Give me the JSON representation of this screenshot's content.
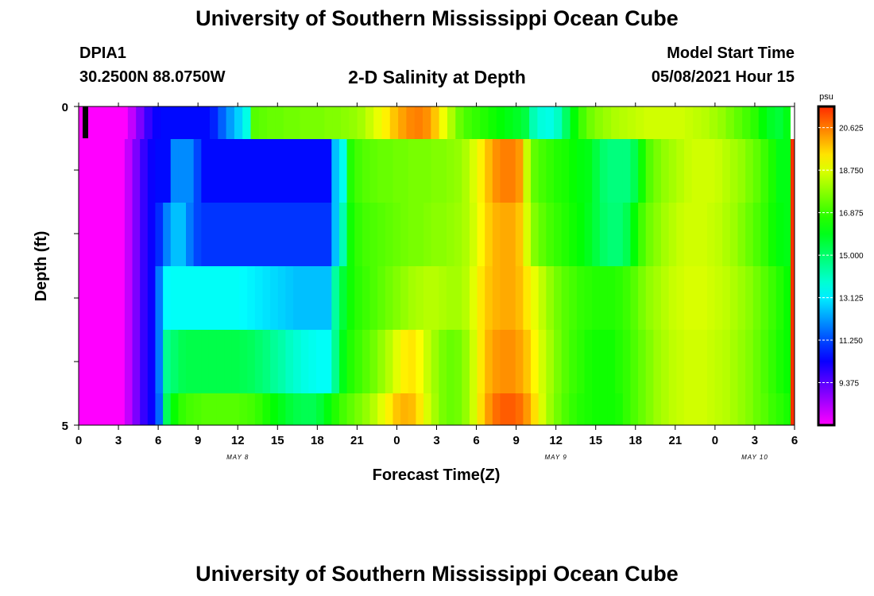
{
  "header": {
    "title": "University of Southern Mississippi Ocean Cube",
    "station": "DPIA1",
    "coords": "30.2500N  88.0750W",
    "subtitle": "2-D Salinity at Depth",
    "model_start_label": "Model Start Time",
    "model_start_value": "05/08/2021 Hour 15"
  },
  "footer": {
    "title": "University of Southern Mississippi Ocean Cube"
  },
  "chart_data": {
    "type": "heatmap",
    "title": "2-D Salinity at Depth",
    "xlabel": "Forecast Time(Z)",
    "ylabel": "Depth (ft)",
    "x_tick_labels": [
      "0",
      "3",
      "6",
      "9",
      "12",
      "15",
      "18",
      "21",
      "0",
      "3",
      "6",
      "9",
      "12",
      "15",
      "18",
      "21",
      "0",
      "3",
      "6"
    ],
    "date_labels": [
      {
        "label": "MAY 8",
        "tick_index": 4
      },
      {
        "label": "MAY 9",
        "tick_index": 12
      },
      {
        "label": "MAY 10",
        "tick_index": 17
      }
    ],
    "y_tick_labels": [
      "0",
      "5"
    ],
    "y_range": [
      0,
      5
    ],
    "hours_range": [
      0,
      54
    ],
    "colorbar": {
      "unit": "psu",
      "min": 7.5,
      "max": 21.56,
      "ticks": [
        "20.625",
        "18.750",
        "16.875",
        "15.000",
        "13.125",
        "11.250",
        "9.375"
      ]
    },
    "depth_layers": [
      {
        "name": "0.0-0.5 ft",
        "salinity": [
          7.5,
          7.5,
          7.5,
          7.5,
          7.5,
          7.5,
          8.2,
          9.0,
          9.8,
          10.3,
          10.5,
          10.5,
          10.5,
          10.5,
          10.5,
          10.5,
          10.8,
          11.5,
          12.2,
          12.8,
          13.6,
          17.2,
          17.3,
          17.4,
          17.4,
          17.5,
          17.5,
          17.6,
          17.6,
          17.6,
          17.7,
          17.7,
          17.8,
          17.9,
          18.1,
          18.5,
          18.9,
          19.3,
          19.8,
          20.2,
          20.5,
          20.6,
          20.4,
          19.8,
          19.0,
          18.2,
          17.4,
          17.0,
          16.8,
          16.6,
          16.4,
          16.2,
          16.0,
          15.8,
          15.5,
          14.2,
          13.7,
          13.6,
          14.0,
          15.1,
          16.2,
          17.0,
          17.5,
          17.8,
          18.0,
          18.2,
          18.3,
          18.4,
          18.5,
          18.6,
          18.6,
          18.6,
          18.6,
          18.6,
          18.5,
          18.4,
          18.3,
          18.1,
          17.9,
          17.6,
          17.3,
          17.0,
          16.7,
          16.2,
          15.8,
          15.6,
          16.0
        ]
      },
      {
        "name": "0.5-1.5 ft",
        "salinity": [
          7.5,
          7.5,
          7.5,
          7.5,
          7.5,
          7.5,
          8.2,
          9.0,
          9.8,
          10.3,
          10.5,
          10.5,
          12.0,
          12.0,
          12.0,
          11.2,
          10.5,
          10.5,
          10.5,
          10.5,
          10.5,
          10.5,
          10.5,
          10.5,
          10.5,
          10.5,
          10.5,
          10.5,
          10.5,
          10.5,
          10.5,
          10.5,
          10.5,
          12.6,
          13.5,
          16.6,
          17.0,
          17.2,
          17.3,
          17.4,
          17.4,
          17.5,
          17.5,
          17.6,
          17.6,
          17.6,
          17.7,
          17.7,
          17.8,
          17.9,
          18.2,
          18.7,
          19.3,
          19.9,
          20.4,
          20.6,
          20.6,
          20.3,
          18.5,
          17.3,
          17.0,
          16.8,
          16.6,
          16.5,
          16.3,
          16.1,
          16.0,
          15.5,
          15.0,
          14.8,
          14.8,
          14.8,
          15.3,
          16.4,
          17.2,
          17.6,
          17.9,
          18.1,
          18.3,
          18.5,
          18.6,
          18.6,
          18.6,
          18.5,
          18.3,
          18.1,
          17.9,
          17.6,
          17.3,
          16.9,
          16.5,
          16.0,
          16.0
        ]
      },
      {
        "name": "1.5-2.5 ft",
        "salinity": [
          7.5,
          7.5,
          7.5,
          7.5,
          7.5,
          7.5,
          8.2,
          9.0,
          9.8,
          10.3,
          10.9,
          11.9,
          12.6,
          12.6,
          11.8,
          11.2,
          11.0,
          11.0,
          11.0,
          11.0,
          11.0,
          11.0,
          11.0,
          11.0,
          11.0,
          11.0,
          11.0,
          11.0,
          11.0,
          11.0,
          11.0,
          11.0,
          11.0,
          12.6,
          14.2,
          16.4,
          16.8,
          17.0,
          17.1,
          17.2,
          17.3,
          17.4,
          17.5,
          17.6,
          17.6,
          17.7,
          17.8,
          17.8,
          17.9,
          18.0,
          18.2,
          18.6,
          19.2,
          19.7,
          20.0,
          20.1,
          20.1,
          19.8,
          18.7,
          17.7,
          17.3,
          17.0,
          16.8,
          16.6,
          16.4,
          16.2,
          15.9,
          15.5,
          15.1,
          14.9,
          14.9,
          15.3,
          16.2,
          17.0,
          17.5,
          17.8,
          18.1,
          18.3,
          18.5,
          18.6,
          18.6,
          18.6,
          18.5,
          18.4,
          18.2,
          18.0,
          17.7,
          17.4,
          17.1,
          16.8,
          16.4,
          16.1,
          16.0
        ]
      },
      {
        "name": "2.5-3.5 ft",
        "salinity": [
          7.5,
          7.5,
          7.5,
          7.5,
          7.5,
          7.5,
          8.2,
          9.0,
          9.8,
          10.3,
          11.8,
          13.3,
          13.4,
          13.4,
          13.4,
          13.4,
          13.4,
          13.4,
          13.4,
          13.4,
          13.4,
          13.3,
          13.2,
          13.1,
          13.0,
          12.9,
          12.8,
          12.7,
          12.6,
          12.6,
          12.6,
          12.6,
          12.6,
          14.4,
          15.6,
          16.4,
          16.7,
          16.9,
          17.1,
          17.3,
          17.5,
          17.7,
          17.9,
          18.1,
          18.2,
          18.3,
          18.3,
          18.2,
          18.1,
          18.1,
          18.3,
          18.8,
          19.4,
          19.8,
          20.0,
          20.1,
          20.1,
          19.9,
          19.4,
          18.9,
          18.4,
          17.9,
          17.5,
          17.2,
          17.0,
          16.8,
          16.7,
          16.6,
          16.6,
          16.6,
          16.7,
          16.9,
          17.2,
          17.6,
          17.9,
          18.1,
          18.3,
          18.5,
          18.6,
          18.7,
          18.7,
          18.7,
          18.6,
          18.5,
          18.4,
          18.2,
          18.0,
          17.8,
          17.5,
          17.2,
          16.9,
          16.6,
          16.3
        ]
      },
      {
        "name": "3.5-4.5 ft",
        "salinity": [
          7.5,
          7.5,
          7.5,
          7.5,
          7.5,
          7.5,
          8.2,
          9.0,
          9.8,
          10.3,
          11.8,
          14.6,
          15.0,
          15.3,
          15.4,
          15.4,
          15.4,
          15.4,
          15.4,
          15.4,
          15.4,
          15.3,
          15.2,
          15.0,
          14.8,
          14.5,
          14.3,
          14.0,
          13.8,
          13.6,
          13.5,
          13.4,
          13.4,
          14.6,
          16.0,
          16.6,
          16.9,
          17.2,
          17.5,
          17.9,
          18.3,
          18.8,
          19.3,
          19.4,
          19.1,
          18.5,
          18.0,
          17.6,
          17.4,
          17.5,
          17.9,
          18.6,
          19.4,
          20.0,
          20.3,
          20.4,
          20.4,
          20.2,
          19.8,
          19.2,
          18.6,
          18.1,
          17.6,
          17.2,
          16.9,
          16.7,
          16.5,
          16.4,
          16.4,
          16.4,
          16.6,
          16.8,
          17.1,
          17.4,
          17.7,
          18.0,
          18.2,
          18.4,
          18.5,
          18.6,
          18.6,
          18.6,
          18.5,
          18.4,
          18.3,
          18.1,
          17.9,
          17.7,
          17.4,
          17.1,
          16.8,
          16.5,
          16.3
        ]
      },
      {
        "name": "4.5-5.0 ft",
        "salinity": [
          7.5,
          7.5,
          7.5,
          7.5,
          7.5,
          7.5,
          8.2,
          9.0,
          9.8,
          10.3,
          11.6,
          15.2,
          16.3,
          16.8,
          17.0,
          17.1,
          17.2,
          17.2,
          17.2,
          17.2,
          17.2,
          17.1,
          17.0,
          16.8,
          16.5,
          16.2,
          15.9,
          15.6,
          15.4,
          15.3,
          15.3,
          15.6,
          16.1,
          16.6,
          17.0,
          17.3,
          17.6,
          17.9,
          18.3,
          18.8,
          19.3,
          19.8,
          20.0,
          19.9,
          19.4,
          18.7,
          18.1,
          17.6,
          17.4,
          17.5,
          17.9,
          18.6,
          19.5,
          20.3,
          20.8,
          21.0,
          21.0,
          20.8,
          20.3,
          19.5,
          18.7,
          18.0,
          17.5,
          17.1,
          16.8,
          16.6,
          16.5,
          16.4,
          16.4,
          16.4,
          16.5,
          16.8,
          17.1,
          17.4,
          17.7,
          18.0,
          18.2,
          18.4,
          18.5,
          18.6,
          18.6,
          18.6,
          18.5,
          18.4,
          18.3,
          18.1,
          17.9,
          17.7,
          17.4,
          17.2,
          16.9,
          16.7,
          16.5
        ]
      }
    ],
    "last_column_color": "#ff3000"
  }
}
